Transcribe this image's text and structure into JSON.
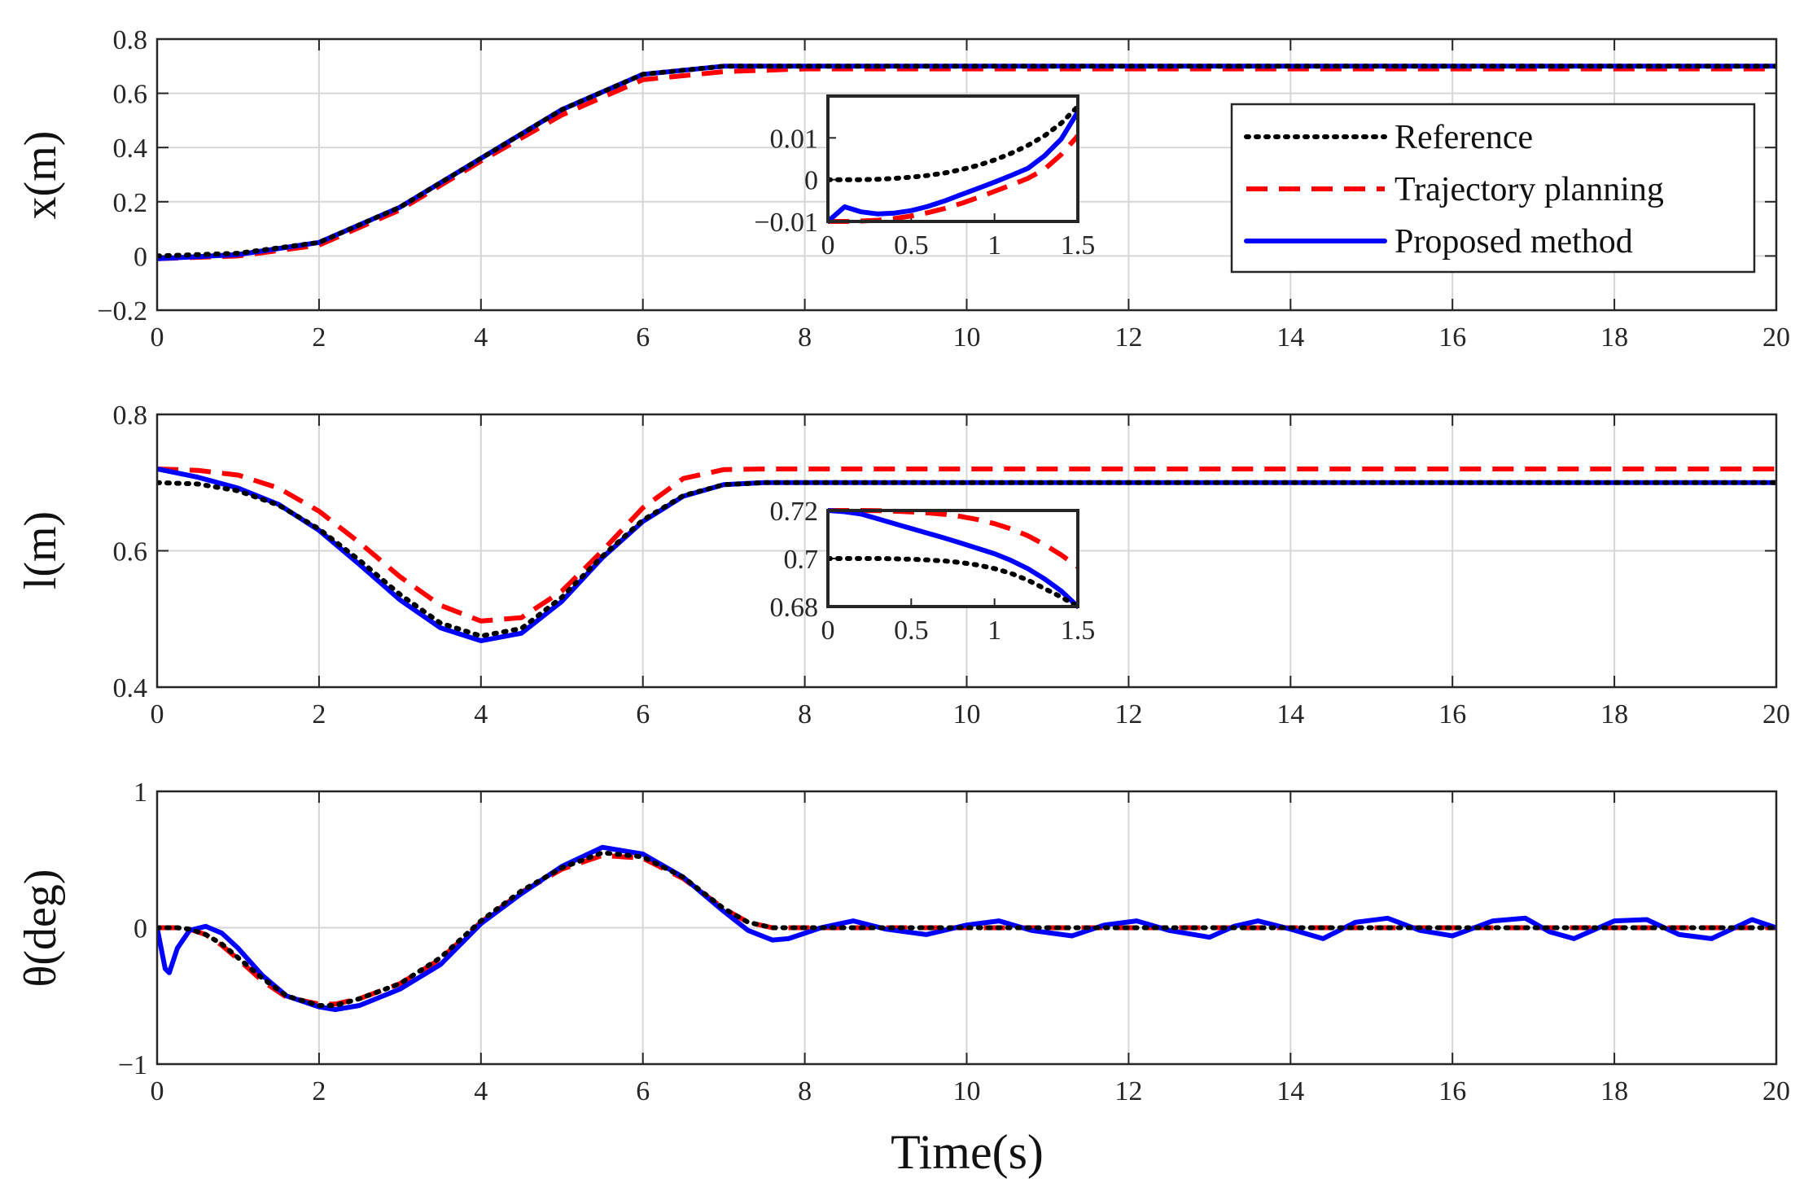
{
  "figure": {
    "xlabel": "Time(s)",
    "colors": {
      "reference": "#000000",
      "trajectory_planning": "#ff0000",
      "proposed": "#0000ff"
    }
  },
  "legend": {
    "placement": "top-right of first panel",
    "entries": [
      {
        "label": "Reference",
        "style": "dotted",
        "color": "#000000"
      },
      {
        "label": "Trajectory planning",
        "style": "dashed",
        "color": "#ff0000"
      },
      {
        "label": "Proposed method",
        "style": "solid",
        "color": "#0000ff"
      }
    ]
  },
  "chart_data": [
    {
      "type": "line",
      "id": "x",
      "ylabel": "x(m)",
      "xlim": [
        0,
        20
      ],
      "ylim": [
        -0.2,
        0.8
      ],
      "grid": true,
      "xticks": [
        0,
        2,
        4,
        6,
        8,
        10,
        12,
        14,
        16,
        18,
        20
      ],
      "xtick_labels": [
        "0",
        "2",
        "4",
        "6",
        "8",
        "10",
        "12",
        "14",
        "16",
        "18",
        "20"
      ],
      "yticks": [
        -0.2,
        0,
        0.2,
        0.4,
        0.6,
        0.8
      ],
      "ytick_labels": [
        "−0.2",
        "0",
        "0.2",
        "0.4",
        "0.6",
        "0.8"
      ],
      "x": [
        0,
        1,
        2,
        3,
        4,
        5,
        6,
        7,
        8,
        10,
        12,
        14,
        16,
        18,
        20
      ],
      "series": [
        {
          "name": "Reference",
          "values": [
            0,
            0.01,
            0.05,
            0.18,
            0.36,
            0.54,
            0.67,
            0.7,
            0.7,
            0.7,
            0.7,
            0.7,
            0.7,
            0.7,
            0.7
          ]
        },
        {
          "name": "Trajectory planning",
          "values": [
            -0.01,
            0.0,
            0.04,
            0.17,
            0.35,
            0.52,
            0.65,
            0.68,
            0.69,
            0.69,
            0.69,
            0.69,
            0.69,
            0.69,
            0.69
          ]
        },
        {
          "name": "Proposed method",
          "values": [
            -0.01,
            0.005,
            0.05,
            0.18,
            0.36,
            0.54,
            0.67,
            0.7,
            0.7,
            0.7,
            0.7,
            0.7,
            0.7,
            0.7,
            0.7
          ]
        }
      ],
      "inset": {
        "xlim": [
          0,
          1.5
        ],
        "ylim": [
          -0.01,
          0.02
        ],
        "xticks": [
          0,
          0.5,
          1,
          1.5
        ],
        "xtick_labels": [
          "0",
          "0.5",
          "1",
          "1.5"
        ],
        "yticks": [
          -0.01,
          0,
          0.01
        ],
        "ytick_labels": [
          "−0.01",
          "0",
          "0.01"
        ],
        "x": [
          0,
          0.1,
          0.2,
          0.3,
          0.4,
          0.5,
          0.6,
          0.7,
          0.8,
          0.9,
          1.0,
          1.1,
          1.2,
          1.3,
          1.4,
          1.5
        ],
        "series": [
          {
            "name": "Reference",
            "values": [
              0,
              0,
              0,
              0.0001,
              0.0003,
              0.0006,
              0.001,
              0.0016,
              0.0024,
              0.0034,
              0.0047,
              0.0063,
              0.0082,
              0.0105,
              0.0135,
              0.0175
            ]
          },
          {
            "name": "Trajectory planning",
            "values": [
              -0.01,
              -0.01,
              -0.0099,
              -0.0097,
              -0.0093,
              -0.0087,
              -0.0079,
              -0.0069,
              -0.0057,
              -0.0043,
              -0.0028,
              -0.0013,
              0.0003,
              0.0025,
              0.006,
              0.0105
            ]
          },
          {
            "name": "Proposed method",
            "values": [
              -0.01,
              -0.0065,
              -0.0077,
              -0.0082,
              -0.008,
              -0.0074,
              -0.0064,
              -0.0051,
              -0.0036,
              -0.0021,
              -0.0006,
              0.001,
              0.0027,
              0.0057,
              0.0097,
              0.0162
            ]
          }
        ]
      }
    },
    {
      "type": "line",
      "id": "l",
      "ylabel": "l(m)",
      "xlim": [
        0,
        20
      ],
      "ylim": [
        0.4,
        0.8
      ],
      "grid": true,
      "xticks": [
        0,
        2,
        4,
        6,
        8,
        10,
        12,
        14,
        16,
        18,
        20
      ],
      "xtick_labels": [
        "0",
        "2",
        "4",
        "6",
        "8",
        "10",
        "12",
        "14",
        "16",
        "18",
        "20"
      ],
      "yticks": [
        0.4,
        0.6,
        0.8
      ],
      "ytick_labels": [
        "0.4",
        "0.6",
        "0.8"
      ],
      "x": [
        0,
        0.5,
        1,
        1.5,
        2,
        2.5,
        3,
        3.5,
        4,
        4.5,
        5,
        5.5,
        6,
        6.5,
        7,
        7.5,
        8,
        10,
        12,
        14,
        16,
        18,
        20
      ],
      "series": [
        {
          "name": "Reference",
          "values": [
            0.7,
            0.698,
            0.688,
            0.667,
            0.632,
            0.586,
            0.536,
            0.494,
            0.475,
            0.486,
            0.532,
            0.592,
            0.645,
            0.681,
            0.697,
            0.7,
            0.7,
            0.7,
            0.7,
            0.7,
            0.7,
            0.7,
            0.7
          ]
        },
        {
          "name": "Trajectory planning",
          "values": [
            0.72,
            0.718,
            0.711,
            0.692,
            0.658,
            0.612,
            0.562,
            0.52,
            0.497,
            0.502,
            0.541,
            0.6,
            0.663,
            0.706,
            0.719,
            0.72,
            0.72,
            0.72,
            0.72,
            0.72,
            0.72,
            0.72,
            0.72
          ]
        },
        {
          "name": "Proposed method",
          "values": [
            0.72,
            0.708,
            0.692,
            0.668,
            0.63,
            0.58,
            0.528,
            0.487,
            0.468,
            0.479,
            0.526,
            0.59,
            0.643,
            0.68,
            0.697,
            0.7,
            0.7,
            0.7,
            0.7,
            0.7,
            0.7,
            0.7,
            0.7
          ]
        }
      ],
      "inset": {
        "xlim": [
          0,
          1.5
        ],
        "ylim": [
          0.68,
          0.72
        ],
        "xticks": [
          0,
          0.5,
          1,
          1.5
        ],
        "xtick_labels": [
          "0",
          "0.5",
          "1",
          "1.5"
        ],
        "yticks": [
          0.68,
          0.7,
          0.72
        ],
        "ytick_labels": [
          "0.68",
          "0.7",
          "0.72"
        ],
        "x": [
          0,
          0.1,
          0.2,
          0.3,
          0.4,
          0.5,
          0.6,
          0.7,
          0.8,
          0.9,
          1.0,
          1.1,
          1.2,
          1.3,
          1.4,
          1.5
        ],
        "series": [
          {
            "name": "Reference",
            "values": [
              0.7,
              0.7,
              0.7,
              0.7,
              0.6999,
              0.6997,
              0.6994,
              0.699,
              0.6983,
              0.6973,
              0.6958,
              0.6938,
              0.691,
              0.6875,
              0.684,
              0.68
            ]
          },
          {
            "name": "Trajectory planning",
            "values": [
              0.72,
              0.72,
              0.72,
              0.7199,
              0.7197,
              0.7194,
              0.719,
              0.7184,
              0.7175,
              0.7162,
              0.7145,
              0.7123,
              0.7095,
              0.7058,
              0.7015,
              0.6965
            ]
          },
          {
            "name": "Proposed method",
            "values": [
              0.72,
              0.7195,
              0.7185,
              0.7165,
              0.7145,
              0.7125,
              0.7105,
              0.7085,
              0.7064,
              0.7042,
              0.702,
              0.6992,
              0.6958,
              0.6915,
              0.6865,
              0.68
            ]
          }
        ]
      }
    },
    {
      "type": "line",
      "id": "theta",
      "ylabel": "θ(deg)",
      "xlim": [
        0,
        20
      ],
      "ylim": [
        -1,
        1
      ],
      "grid": true,
      "xticks": [
        0,
        2,
        4,
        6,
        8,
        10,
        12,
        14,
        16,
        18,
        20
      ],
      "xtick_labels": [
        "0",
        "2",
        "4",
        "6",
        "8",
        "10",
        "12",
        "14",
        "16",
        "18",
        "20"
      ],
      "yticks": [
        -1,
        0,
        1
      ],
      "ytick_labels": [
        "−1",
        "0",
        "1"
      ],
      "x": [
        0,
        0.1,
        0.15,
        0.25,
        0.4,
        0.6,
        0.8,
        1.0,
        1.3,
        1.6,
        2.0,
        2.2,
        2.5,
        3.0,
        3.5,
        4.0,
        4.5,
        5.0,
        5.5,
        6.0,
        6.5,
        7.0,
        7.3,
        7.6,
        7.8,
        8.2,
        8.6,
        9.0,
        9.5,
        10.0,
        10.4,
        10.8,
        11.3,
        11.7,
        12.1,
        12.5,
        13.0,
        13.3,
        13.6,
        14.0,
        14.4,
        14.8,
        15.2,
        15.6,
        16.0,
        16.5,
        16.9,
        17.2,
        17.5,
        18.0,
        18.4,
        18.8,
        19.2,
        19.7,
        20.0
      ],
      "series": [
        {
          "name": "Reference",
          "values": [
            0,
            0,
            0,
            0,
            -0.01,
            -0.05,
            -0.12,
            -0.22,
            -0.37,
            -0.5,
            -0.57,
            -0.57,
            -0.52,
            -0.41,
            -0.22,
            0.05,
            0.27,
            0.44,
            0.55,
            0.52,
            0.37,
            0.14,
            0.04,
            0.0,
            0,
            0,
            0,
            0,
            0,
            0,
            0,
            0,
            0,
            0,
            0,
            0,
            0,
            0,
            0,
            0,
            0,
            0,
            0,
            0,
            0,
            0,
            0,
            0,
            0,
            0,
            0,
            0,
            0,
            0,
            0
          ]
        },
        {
          "name": "Trajectory planning",
          "values": [
            0,
            0,
            0,
            0,
            -0.01,
            -0.05,
            -0.13,
            -0.23,
            -0.39,
            -0.51,
            -0.56,
            -0.56,
            -0.52,
            -0.41,
            -0.23,
            0.04,
            0.26,
            0.43,
            0.53,
            0.51,
            0.36,
            0.14,
            0.04,
            0.0,
            0,
            0,
            0,
            0,
            0,
            0,
            0,
            0,
            0,
            0,
            0,
            0,
            0,
            0,
            0,
            0,
            0,
            0,
            0,
            0,
            0,
            0,
            0,
            0,
            0,
            0,
            0,
            0,
            0,
            0,
            0
          ]
        },
        {
          "name": "Proposed method",
          "values": [
            0,
            -0.3,
            -0.33,
            -0.15,
            -0.02,
            0.01,
            -0.04,
            -0.15,
            -0.35,
            -0.5,
            -0.58,
            -0.6,
            -0.57,
            -0.45,
            -0.27,
            0.03,
            0.25,
            0.45,
            0.59,
            0.54,
            0.37,
            0.12,
            -0.02,
            -0.09,
            -0.08,
            0.0,
            0.05,
            -0.01,
            -0.05,
            0.02,
            0.05,
            -0.02,
            -0.06,
            0.02,
            0.05,
            -0.02,
            -0.07,
            0.01,
            0.05,
            -0.01,
            -0.08,
            0.04,
            0.07,
            -0.02,
            -0.06,
            0.05,
            0.07,
            -0.03,
            -0.08,
            0.05,
            0.06,
            -0.05,
            -0.08,
            0.06,
            0.0
          ]
        }
      ]
    }
  ]
}
